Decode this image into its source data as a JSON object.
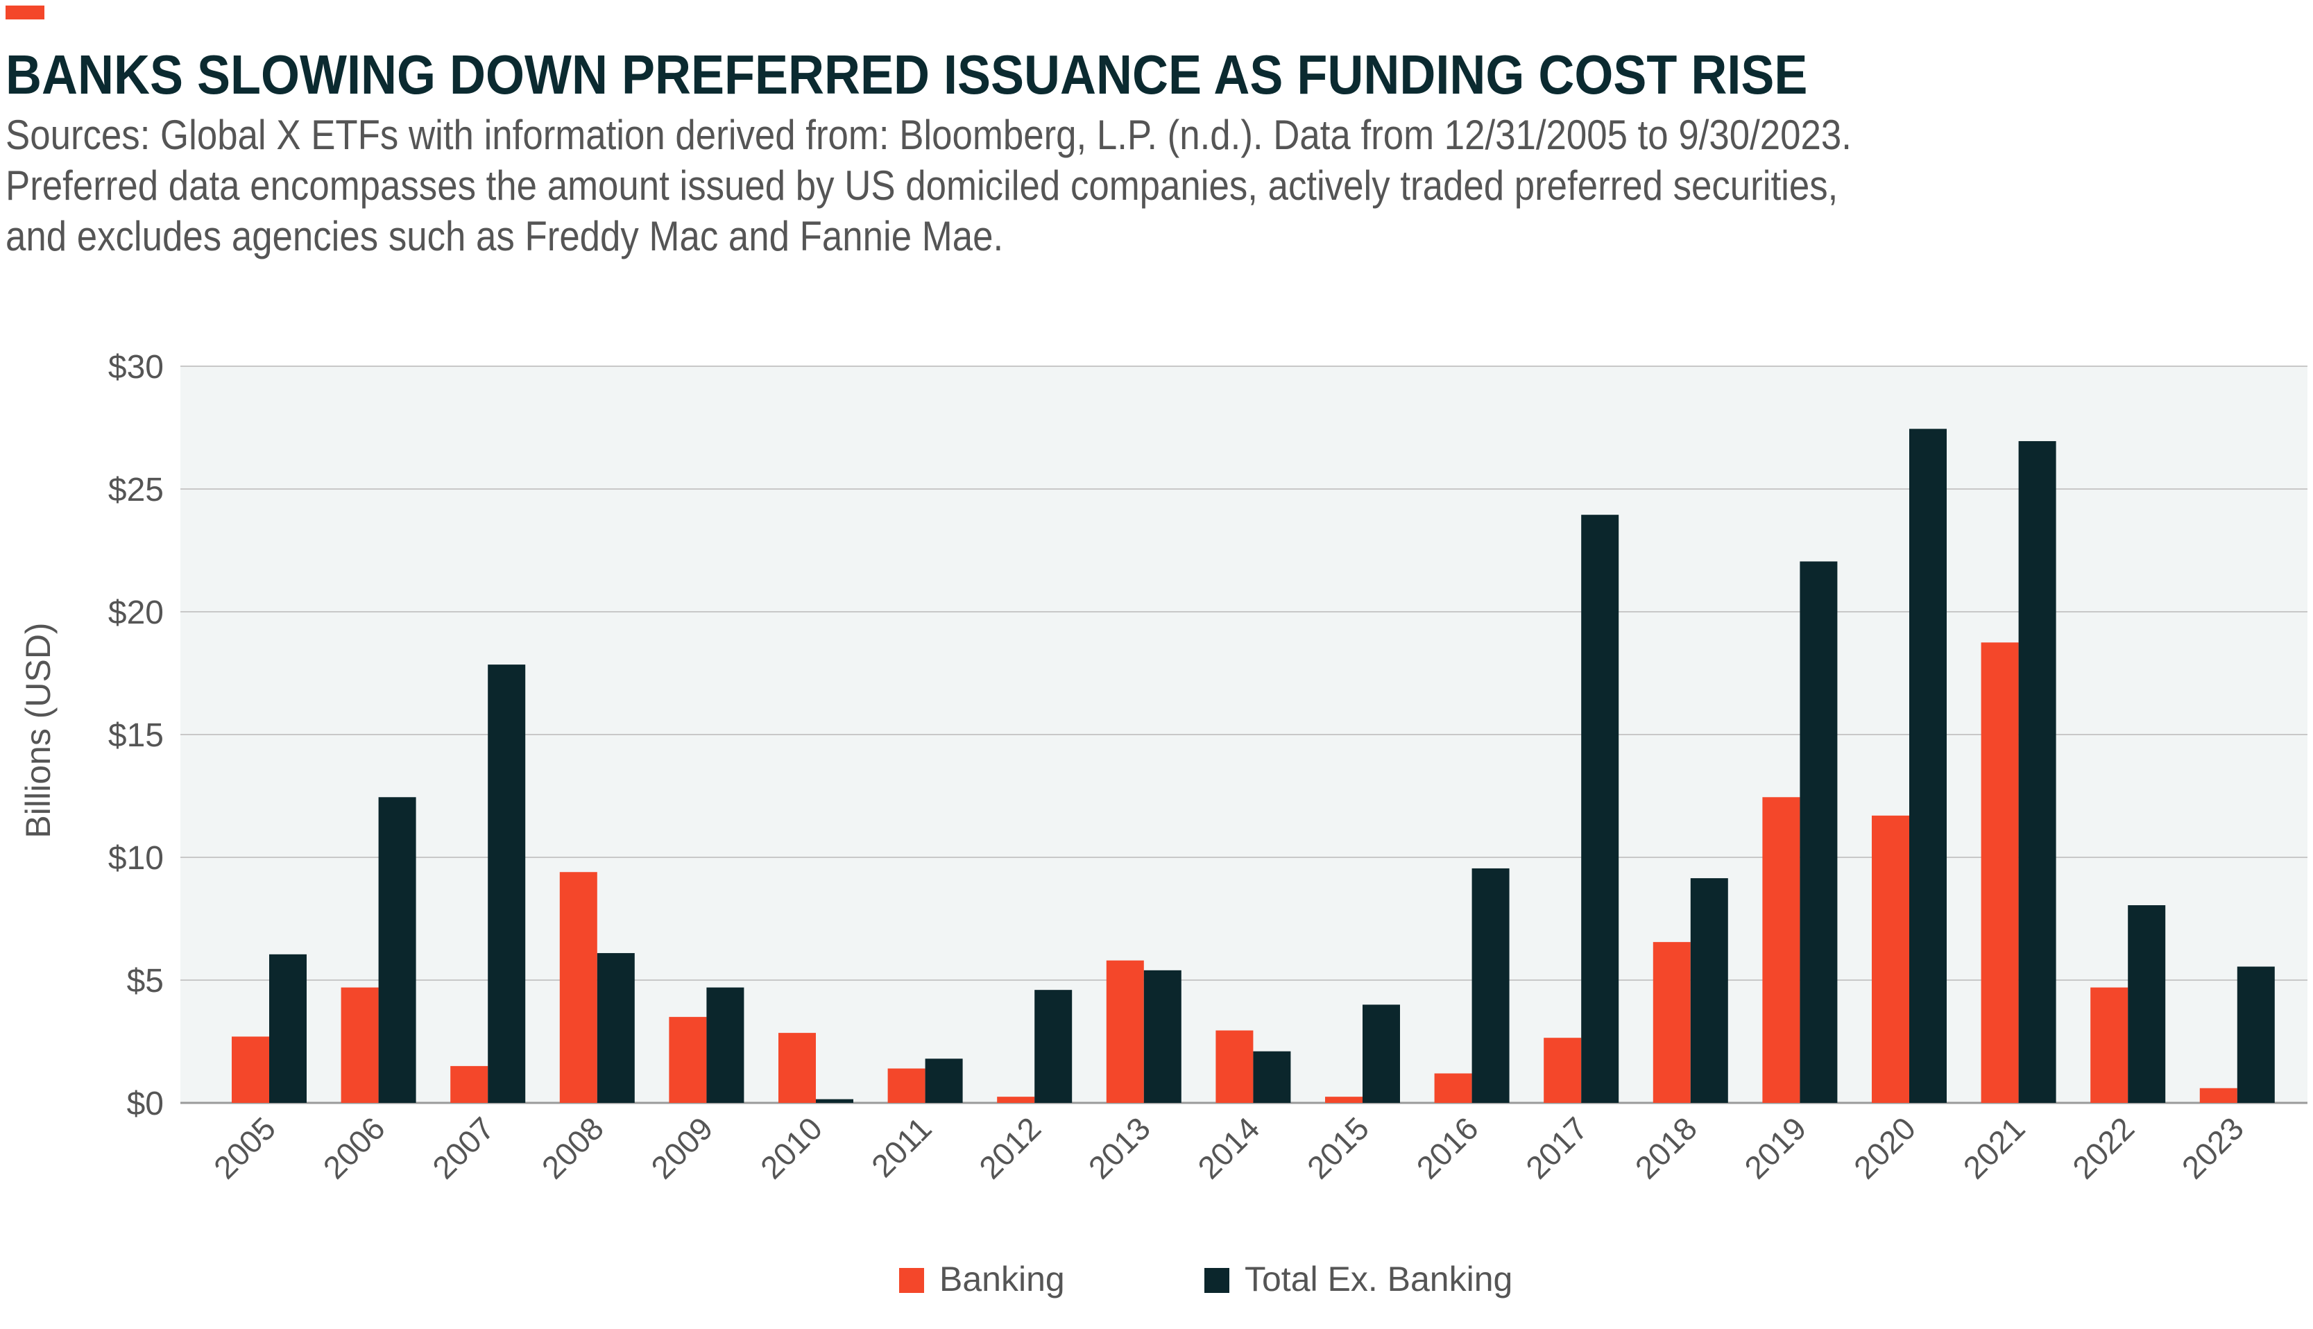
{
  "colors": {
    "accent": "#f4472a",
    "banking": "#f4472a",
    "total_ex_banking": "#0b262c",
    "plot_bg": "#f2f5f5",
    "grid": "#c8c8c8",
    "title": "#0b2a30",
    "text": "#555555"
  },
  "header": {
    "title": "BANKS SLOWING DOWN PREFERRED ISSUANCE AS FUNDING COST RISE",
    "subtitle_lines": [
      "Sources: Global X ETFs with information derived from: Bloomberg, L.P. (n.d.). Data from 12/31/2005 to 9/30/2023.",
      "Preferred data encompasses the amount issued by US domiciled companies, actively traded preferred securities,",
      "and excludes agencies such as Freddy Mac and Fannie Mae."
    ]
  },
  "chart_data": {
    "type": "bar",
    "title": "BANKS SLOWING DOWN PREFERRED ISSUANCE AS FUNDING COST RISE",
    "xlabel": "",
    "ylabel": "Billions (USD)",
    "ylim": [
      0,
      30
    ],
    "yticks": [
      0,
      5,
      10,
      15,
      20,
      25,
      30
    ],
    "ytick_labels": [
      "$0",
      "$5",
      "$10",
      "$15",
      "$20",
      "$25",
      "$30"
    ],
    "grid": true,
    "legend_position": "bottom-center",
    "categories": [
      "2005",
      "2006",
      "2007",
      "2008",
      "2009",
      "2010",
      "2011",
      "2012",
      "2013",
      "2014",
      "2015",
      "2016",
      "2017",
      "2018",
      "2019",
      "2020",
      "2021",
      "2022",
      "2023"
    ],
    "series": [
      {
        "name": "Banking",
        "color": "#f4472a",
        "values": [
          2.7,
          4.7,
          1.5,
          9.4,
          3.5,
          2.85,
          1.4,
          0.25,
          5.8,
          2.95,
          0.25,
          1.2,
          2.65,
          6.55,
          12.45,
          11.7,
          18.75,
          4.7,
          0.6
        ]
      },
      {
        "name": "Total Ex. Banking",
        "color": "#0b262c",
        "values": [
          6.05,
          12.45,
          17.85,
          6.1,
          4.7,
          0.15,
          1.8,
          4.6,
          5.4,
          2.1,
          4.0,
          9.55,
          23.95,
          9.15,
          22.05,
          27.45,
          26.95,
          8.05,
          5.55
        ]
      }
    ]
  }
}
